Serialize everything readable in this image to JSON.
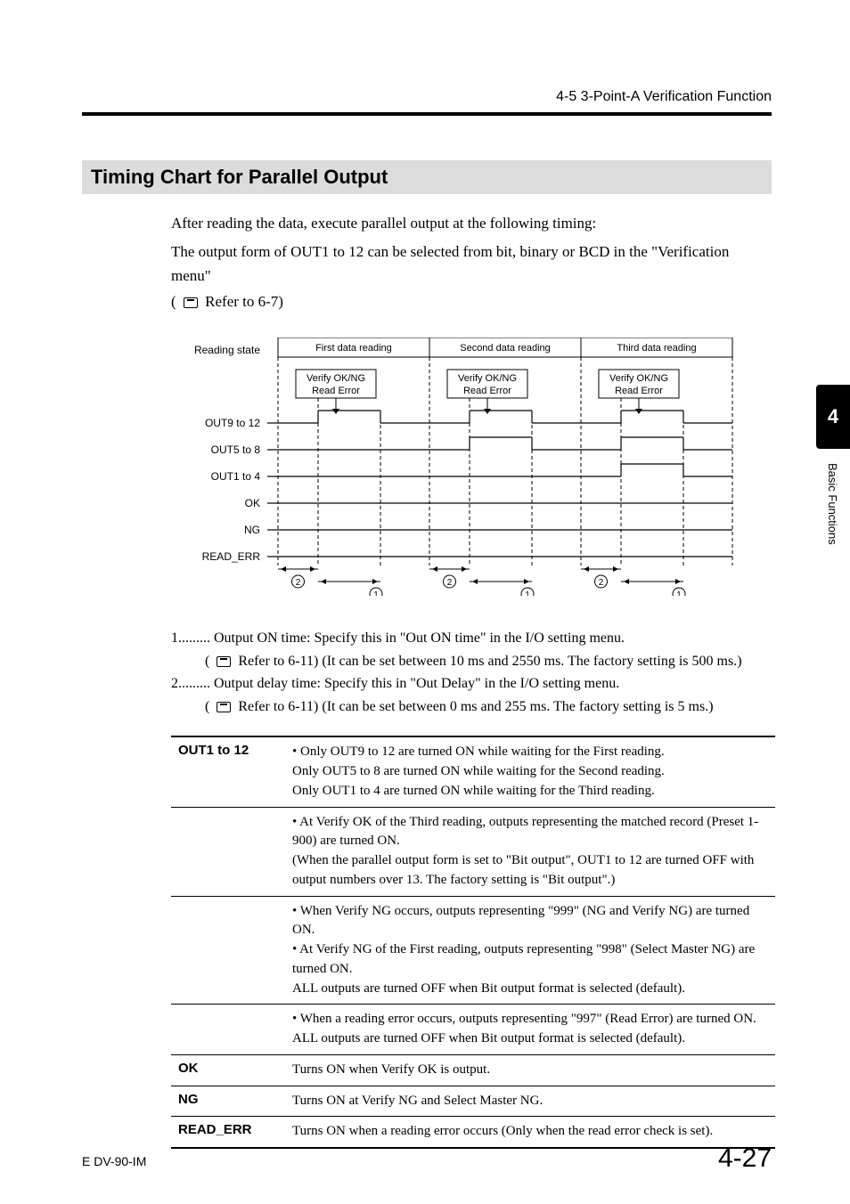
{
  "header": {
    "breadcrumb": "4-5  3-Point-A Verification Function"
  },
  "section": {
    "title": "Timing Chart for Parallel Output"
  },
  "intro": {
    "line1": "After reading the data, execute parallel output at the following timing:",
    "line2": "The output form of OUT1 to 12 can be selected from bit, binary or BCD in the \"Verification menu\"",
    "ref": " Refer to 6-7)"
  },
  "chart": {
    "reading_state": "Reading state",
    "phases": [
      "First data reading",
      "Second data reading",
      "Third data reading"
    ],
    "verify_line1": "Verify OK/NG",
    "verify_line2": "Read Error",
    "signals": [
      "OUT9 to 12",
      "OUT5 to 8",
      "OUT1 to 4",
      "OK",
      "NG",
      "READ_ERR"
    ],
    "marker1": "1",
    "marker2": "2",
    "font_size_label": 12,
    "font_size_box": 11,
    "line_color": "#000000",
    "dash_pattern": "4,3",
    "box_fill": "#ffffff"
  },
  "notes": {
    "n1_lead": "1.........",
    "n1_text": " Output ON time: Specify this in \"Out ON time\" in the I/O setting menu.",
    "n1_ref": " Refer to 6-11) (It can be set between 10 ms and 2550 ms. The factory setting is 500 ms.)",
    "n2_lead": "2.........",
    "n2_text": " Output delay time: Specify this in \"Out Delay\" in the I/O setting menu.",
    "n2_ref": " Refer to 6-11) (It can be set between 0 ms and 255 ms. The factory setting is 5 ms.)"
  },
  "table": {
    "rows": [
      {
        "label": "OUT1 to 12",
        "text": "• Only OUT9 to 12 are turned ON while waiting for the First reading.\n  Only OUT5 to 8 are turned ON while waiting for the Second reading.\n  Only OUT1 to 4 are turned ON while waiting for the Third reading."
      },
      {
        "label": "",
        "text": "• At Verify OK of the Third reading, outputs representing the matched record (Preset 1-900) are turned ON.\n(When the parallel output form is set to \"Bit output\", OUT1 to 12 are turned OFF with output numbers over 13. The factory setting is \"Bit output\".)"
      },
      {
        "label": "",
        "text": "• When Verify NG occurs, outputs representing \"999\" (NG and Verify NG) are turned ON.\n• At Verify NG of the First reading, outputs representing \"998\" (Select Master NG) are turned ON.\n  ALL outputs are turned OFF when Bit output format is selected (default)."
      },
      {
        "label": "",
        "text": "• When a reading error occurs, outputs representing \"997\" (Read Error) are turned ON.\n  ALL outputs are turned OFF when Bit output format is selected (default)."
      },
      {
        "label": "OK",
        "text": "Turns ON when Verify OK is output."
      },
      {
        "label": "NG",
        "text": "Turns ON at Verify NG and Select Master NG."
      },
      {
        "label": "READ_ERR",
        "text": "Turns ON when a reading error occurs (Only when the read error check is set)."
      }
    ]
  },
  "sidetab": {
    "chapter": "4",
    "label": "Basic Functions"
  },
  "footer": {
    "left": "E DV-90-IM",
    "right": "4-27"
  }
}
